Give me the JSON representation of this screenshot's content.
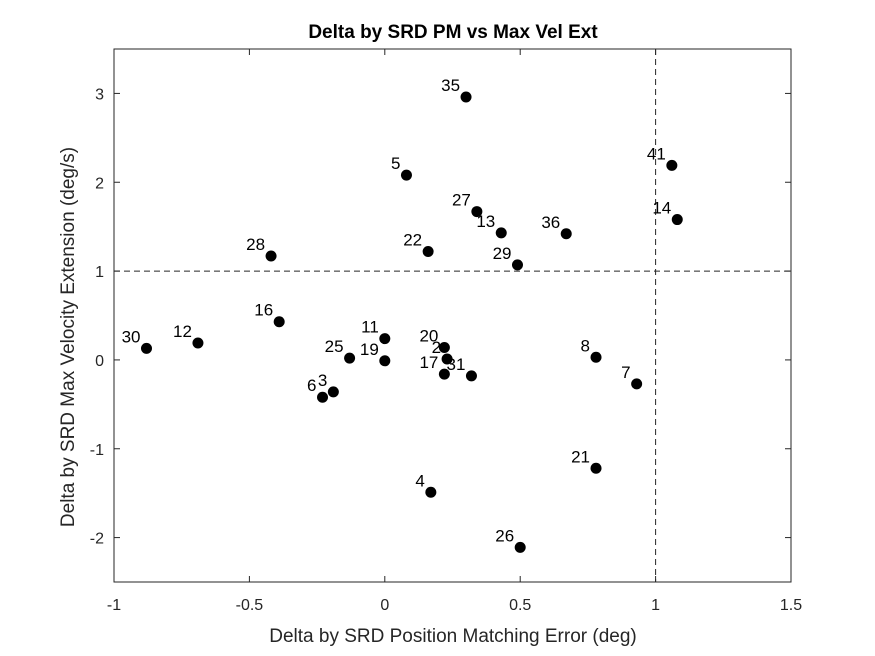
{
  "chart_data": {
    "type": "scatter",
    "title": "Delta by SRD PM vs Max Vel Ext",
    "xlabel": "Delta by SRD Position Matching Error (deg)",
    "ylabel": "Delta by SRD Max Velocity Extension (deg/s)",
    "xlim": [
      -1,
      1.5
    ],
    "ylim": [
      -2.5,
      3.5
    ],
    "xticks": [
      -1,
      -0.5,
      0,
      0.5,
      1,
      1.5
    ],
    "xtick_labels": [
      "-1",
      "-0.5",
      "0",
      "0.5",
      "1",
      "1.5"
    ],
    "yticks": [
      -2,
      -1,
      0,
      1,
      2,
      3
    ],
    "ytick_labels": [
      "-2",
      "-1",
      "0",
      "1",
      "2",
      "3"
    ],
    "grid": false,
    "reference_lines": [
      {
        "orientation": "horizontal",
        "value": 1,
        "style": "dashed"
      },
      {
        "orientation": "vertical",
        "value": 1,
        "style": "dashed"
      }
    ],
    "marker_color": "#000000",
    "points": [
      {
        "label": "35",
        "x": 0.3,
        "y": 2.96
      },
      {
        "label": "41",
        "x": 1.06,
        "y": 2.19
      },
      {
        "label": "5",
        "x": 0.08,
        "y": 2.08
      },
      {
        "label": "27",
        "x": 0.34,
        "y": 1.67
      },
      {
        "label": "14",
        "x": 1.08,
        "y": 1.58
      },
      {
        "label": "13",
        "x": 0.43,
        "y": 1.43
      },
      {
        "label": "36",
        "x": 0.67,
        "y": 1.42
      },
      {
        "label": "22",
        "x": 0.16,
        "y": 1.22
      },
      {
        "label": "28",
        "x": -0.42,
        "y": 1.17
      },
      {
        "label": "29",
        "x": 0.49,
        "y": 1.07
      },
      {
        "label": "16",
        "x": -0.39,
        "y": 0.43
      },
      {
        "label": "11",
        "x": 0.0,
        "y": 0.24
      },
      {
        "label": "12",
        "x": -0.69,
        "y": 0.19
      },
      {
        "label": "20",
        "x": 0.22,
        "y": 0.14
      },
      {
        "label": "30",
        "x": -0.88,
        "y": 0.13
      },
      {
        "label": "8",
        "x": 0.78,
        "y": 0.03
      },
      {
        "label": "25",
        "x": -0.13,
        "y": 0.02
      },
      {
        "label": "2",
        "x": 0.23,
        "y": 0.01
      },
      {
        "label": "19",
        "x": 0.0,
        "y": -0.01
      },
      {
        "label": "31",
        "x": 0.32,
        "y": -0.18
      },
      {
        "label": "17",
        "x": 0.22,
        "y": -0.16
      },
      {
        "label": "7",
        "x": 0.93,
        "y": -0.27
      },
      {
        "label": "3",
        "x": -0.19,
        "y": -0.36
      },
      {
        "label": "6",
        "x": -0.23,
        "y": -0.42
      },
      {
        "label": "21",
        "x": 0.78,
        "y": -1.22
      },
      {
        "label": "4",
        "x": 0.17,
        "y": -1.49
      },
      {
        "label": "26",
        "x": 0.5,
        "y": -2.11
      }
    ]
  }
}
